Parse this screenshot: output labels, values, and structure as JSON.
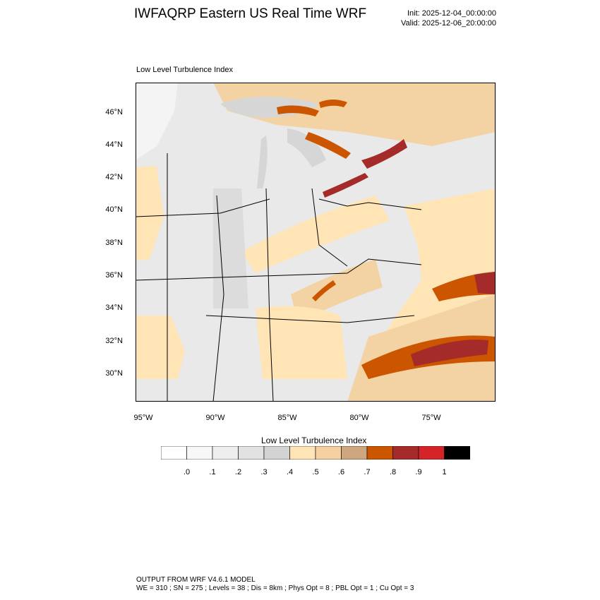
{
  "header": {
    "title": "IWFAQRP Eastern US Real Time WRF",
    "init": "Init: 2025-12-04_00:00:00",
    "valid": "Valid: 2025-12-06_20:00:00"
  },
  "map": {
    "label": "Low Level Turbulence Index",
    "lat_labels": [
      "46°N",
      "44°N",
      "42°N",
      "40°N",
      "38°N",
      "36°N",
      "34°N",
      "32°N",
      "30°N"
    ],
    "lon_labels": [
      "95°W",
      "90°W",
      "85°W",
      "80°W",
      "75°W"
    ],
    "colors": {
      "water": "#d6d6d6",
      "land_low": "#f2f2f2",
      "land_mid": "#e4e4e4",
      "tan_light": "#ffe4b5",
      "tan": "#f3d3a4",
      "brown": "#cfa77f",
      "orange": "#cc5500",
      "red_dark": "#a52a2a",
      "boundary": "#000000"
    }
  },
  "colorbar": {
    "title": "Low Level Turbulence Index",
    "labels": [
      ".0",
      ".1",
      ".2",
      ".3",
      ".4",
      ".5",
      ".6",
      ".7",
      ".8",
      ".9",
      "1"
    ],
    "colors": [
      "#ffffff",
      "#f7f7f7",
      "#eeeeee",
      "#e2e2e2",
      "#d3d3d3",
      "#ffe4b5",
      "#f5d1a2",
      "#cfa77f",
      "#cc5500",
      "#a52a2a",
      "#d42428",
      "#000000"
    ]
  },
  "footer": {
    "line1": "OUTPUT FROM WRF V4.6.1 MODEL",
    "line2": "WE = 310 ; SN = 275 ; Levels = 38 ; Dis = 8km ; Phys Opt = 8 ; PBL Opt = 1 ; Cu Opt = 3"
  }
}
